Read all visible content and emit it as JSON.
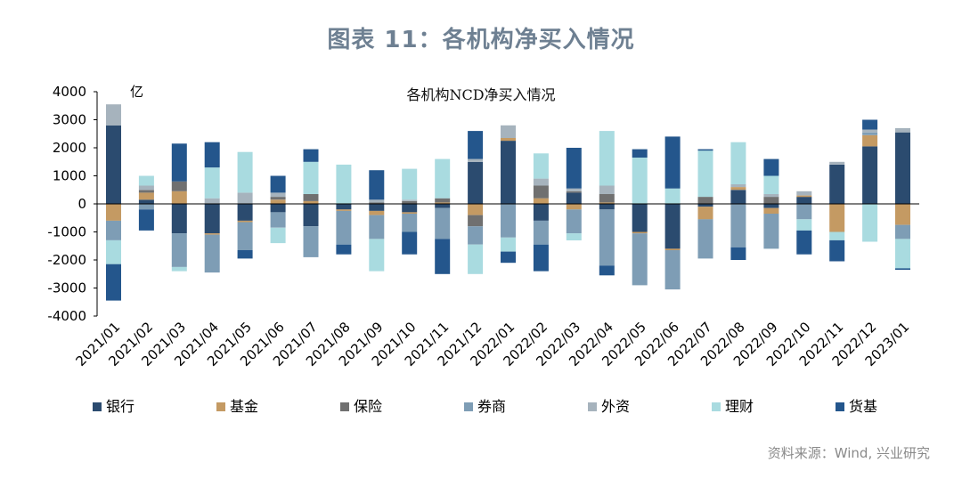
{
  "page_title": "图表 11：各机构净买入情况",
  "source_note": "资料来源：Wind, 兴业研究",
  "chart_data": {
    "type": "bar",
    "stacked": true,
    "title": "各机构NCD净买入情况",
    "ylabel": "亿",
    "ylim": [
      -4000,
      4000
    ],
    "yticks": [
      4000,
      3000,
      2000,
      1000,
      0,
      -1000,
      -2000,
      -3000,
      -4000
    ],
    "grid": false,
    "legend_position": "bottom",
    "categories": [
      "2021/01",
      "2021/02",
      "2021/03",
      "2021/04",
      "2021/05",
      "2021/06",
      "2021/07",
      "2021/08",
      "2021/09",
      "2021/10",
      "2021/11",
      "2021/12",
      "2022/01",
      "2022/02",
      "2022/03",
      "2022/04",
      "2022/05",
      "2022/06",
      "2022/07",
      "2022/08",
      "2022/09",
      "2022/10",
      "2022/11",
      "2022/12",
      "2023/01"
    ],
    "series": [
      {
        "name": "银行",
        "color": "#2b4b6f",
        "values": [
          2800,
          150,
          -1050,
          -1050,
          -600,
          -300,
          -800,
          -200,
          -250,
          -300,
          -150,
          1500,
          2250,
          -600,
          400,
          -200,
          -1000,
          -1600,
          -100,
          500,
          -150,
          250,
          1400,
          2050,
          2550
        ]
      },
      {
        "name": "基金",
        "color": "#c49a63",
        "values": [
          -600,
          250,
          450,
          -50,
          -50,
          150,
          100,
          -50,
          -150,
          -50,
          50,
          -400,
          100,
          200,
          -200,
          50,
          -50,
          -50,
          -450,
          100,
          -200,
          50,
          -1000,
          400,
          -750
        ]
      },
      {
        "name": "保险",
        "color": "#707070",
        "values": [
          0,
          100,
          350,
          0,
          0,
          100,
          250,
          0,
          50,
          100,
          150,
          -400,
          0,
          450,
          50,
          300,
          0,
          0,
          250,
          0,
          250,
          0,
          0,
          0,
          0
        ]
      },
      {
        "name": "券商",
        "color": "#7e9db5",
        "values": [
          -700,
          -200,
          -1200,
          -1350,
          -1000,
          -550,
          -1100,
          -1200,
          -850,
          -650,
          -1100,
          -650,
          -1200,
          -850,
          -850,
          -2000,
          -1850,
          -1400,
          -1400,
          -1550,
          -1250,
          -550,
          0,
          100,
          -500
        ]
      },
      {
        "name": "外资",
        "color": "#a6b3bd",
        "values": [
          750,
          150,
          0,
          200,
          400,
          150,
          0,
          0,
          100,
          50,
          0,
          100,
          450,
          250,
          100,
          300,
          0,
          0,
          0,
          100,
          100,
          150,
          100,
          100,
          150
        ]
      },
      {
        "name": "理财",
        "color": "#a9dbe0",
        "values": [
          -850,
          350,
          -150,
          1100,
          1450,
          -550,
          1150,
          1400,
          -1150,
          1100,
          1400,
          -1050,
          -500,
          900,
          -250,
          1950,
          1650,
          550,
          1650,
          1500,
          650,
          -400,
          -300,
          -1350,
          -1050
        ]
      },
      {
        "name": "货基",
        "color": "#24568c",
        "values": [
          -1300,
          -750,
          1350,
          900,
          -300,
          600,
          450,
          -350,
          1050,
          -800,
          -1250,
          1000,
          -400,
          -950,
          1450,
          -350,
          300,
          1850,
          50,
          -450,
          600,
          -850,
          -750,
          350,
          -50
        ]
      }
    ]
  }
}
